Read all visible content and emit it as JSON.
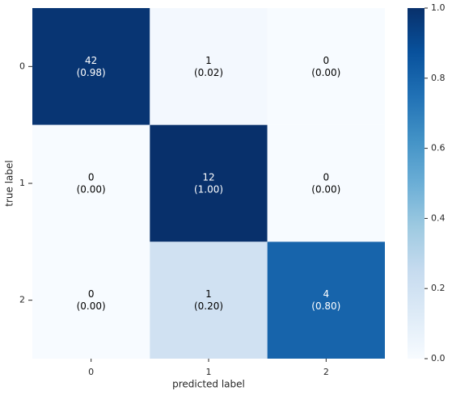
{
  "chart_data": {
    "type": "heatmap",
    "x_label": "predicted label",
    "y_label": "true label",
    "x_categories": [
      "0",
      "1",
      "2"
    ],
    "y_categories": [
      "0",
      "1",
      "2"
    ],
    "counts": [
      [
        42,
        1,
        0
      ],
      [
        0,
        12,
        0
      ],
      [
        0,
        1,
        4
      ]
    ],
    "values": [
      [
        0.98,
        0.02,
        0.0
      ],
      [
        0.0,
        1.0,
        0.0
      ],
      [
        0.0,
        0.2,
        0.8
      ]
    ],
    "value_labels": [
      [
        "(0.98)",
        "(0.02)",
        "(0.00)"
      ],
      [
        "(0.00)",
        "(1.00)",
        "(0.00)"
      ],
      [
        "(0.00)",
        "(0.20)",
        "(0.80)"
      ]
    ],
    "colormap": [
      "#f7fbff",
      "#deebf7",
      "#c6dbef",
      "#9ecae1",
      "#6baed6",
      "#4292c6",
      "#2171b5",
      "#08519c",
      "#08306b"
    ],
    "zlim": [
      0,
      1
    ],
    "zticks": [
      {
        "value": 0,
        "label": "0.0"
      },
      0.2,
      0.4,
      0.6,
      0.8,
      {
        "value": 1,
        "label": "1.0"
      }
    ]
  }
}
